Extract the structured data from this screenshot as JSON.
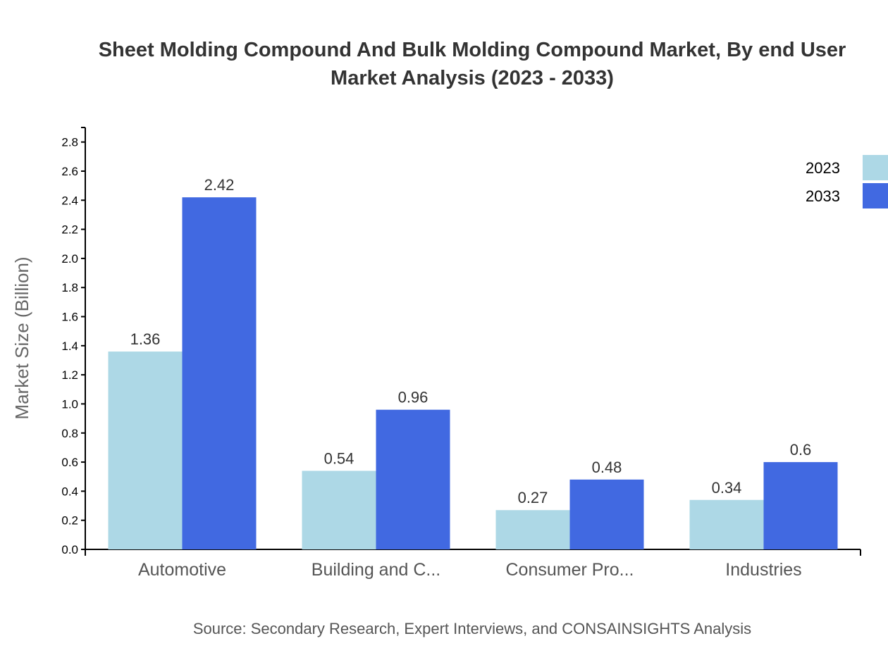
{
  "chart_data": {
    "type": "bar",
    "title_lines": [
      "Sheet Molding Compound And Bulk Molding Compound Market, By end User",
      "Market Analysis (2023 - 2033)"
    ],
    "categories": [
      "Automotive",
      "Building and C...",
      "Consumer Pro...",
      "Industries"
    ],
    "series": [
      {
        "name": "2023",
        "color": "#add8e6",
        "values": [
          1.36,
          0.54,
          0.27,
          0.34
        ],
        "labels": [
          "1.36",
          "0.54",
          "0.27",
          "0.34"
        ]
      },
      {
        "name": "2033",
        "color": "#4169e1",
        "values": [
          2.42,
          0.96,
          0.48,
          0.6
        ],
        "labels": [
          "2.42",
          "0.96",
          "0.48",
          "0.6"
        ]
      }
    ],
    "xlabel": "",
    "ylabel": "Market Size (Billion)",
    "ylim": [
      0,
      2.9
    ],
    "yticks": [
      "0.0",
      "0.2",
      "0.4",
      "0.6",
      "0.8",
      "1.0",
      "1.2",
      "1.4",
      "1.6",
      "1.8",
      "2.0",
      "2.2",
      "2.4",
      "2.6",
      "2.8"
    ],
    "grid": false,
    "legend_position": "top-right",
    "source": "Source: Secondary Research, Expert Interviews, and CONSAINSIGHTS Analysis"
  }
}
